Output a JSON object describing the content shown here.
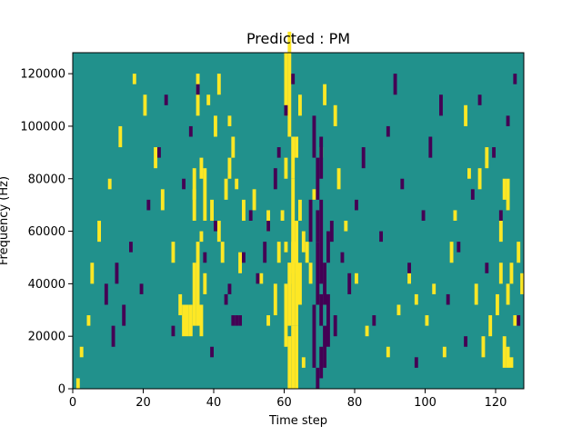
{
  "chart_data": {
    "type": "heatmap",
    "title": "Predicted : PM",
    "xlabel": "Time step",
    "ylabel": "Frequency (Hz)",
    "xlim": [
      0,
      128
    ],
    "ylim": [
      0,
      128000
    ],
    "xticks": [
      0,
      20,
      40,
      60,
      80,
      100,
      120
    ],
    "xtick_labels": [
      "0",
      "20",
      "40",
      "60",
      "80",
      "100",
      "120"
    ],
    "yticks": [
      0,
      20000,
      40000,
      60000,
      80000,
      100000,
      120000
    ],
    "ytick_labels": [
      "0",
      "20000",
      "40000",
      "60000",
      "80000",
      "100000",
      "120000"
    ],
    "grid": false,
    "legend": "none",
    "colors": {
      "background": "#21918c",
      "high": "#fde725",
      "low": "#440154"
    },
    "bin_height_hz": 4000,
    "high_cells": [
      [
        61,
        0,
        5
      ],
      [
        62,
        0,
        6
      ],
      [
        63,
        0,
        6
      ],
      [
        60,
        4,
        10
      ],
      [
        61,
        6,
        12
      ],
      [
        62,
        6,
        20
      ],
      [
        63,
        6,
        16
      ],
      [
        62,
        20,
        24
      ],
      [
        60,
        26,
        32
      ],
      [
        61,
        24,
        34
      ],
      [
        64,
        8,
        12
      ],
      [
        34,
        6,
        12
      ],
      [
        35,
        6,
        14
      ],
      [
        36,
        5,
        8
      ],
      [
        33,
        5,
        8
      ],
      [
        32,
        5,
        8
      ],
      [
        31,
        5,
        8
      ],
      [
        37,
        9,
        11
      ],
      [
        37,
        16,
        21
      ],
      [
        34,
        16,
        21
      ],
      [
        36,
        20,
        22
      ],
      [
        35,
        26,
        30
      ],
      [
        38,
        27,
        28
      ],
      [
        41,
        28,
        30
      ],
      [
        43,
        18,
        20
      ],
      [
        47,
        11,
        13
      ],
      [
        61,
        10,
        12
      ],
      [
        62,
        11,
        14
      ],
      [
        63,
        12,
        14
      ],
      [
        65,
        2,
        3
      ],
      [
        60,
        13,
        14
      ],
      [
        59,
        16,
        17
      ],
      [
        57,
        7,
        10
      ],
      [
        58,
        12,
        14
      ],
      [
        51,
        17,
        19
      ],
      [
        53,
        10,
        11
      ],
      [
        55,
        6,
        7
      ],
      [
        44,
        20,
        22
      ],
      [
        45,
        22,
        24
      ],
      [
        46,
        19,
        20
      ],
      [
        40,
        24,
        26
      ],
      [
        39,
        16,
        18
      ],
      [
        42,
        12,
        14
      ],
      [
        41,
        14,
        16
      ],
      [
        44,
        25,
        26
      ],
      [
        48,
        16,
        18
      ],
      [
        36,
        14,
        15
      ],
      [
        34,
        18,
        19
      ],
      [
        55,
        15,
        17
      ],
      [
        64,
        16,
        18
      ],
      [
        66,
        12,
        14
      ],
      [
        64,
        26,
        28
      ],
      [
        63,
        22,
        24
      ],
      [
        60,
        20,
        22
      ],
      [
        65,
        13,
        15
      ],
      [
        122,
        2,
        5
      ],
      [
        123,
        2,
        4
      ],
      [
        124,
        10,
        12
      ],
      [
        121,
        10,
        12
      ],
      [
        122,
        18,
        20
      ],
      [
        123,
        17,
        20
      ],
      [
        121,
        14,
        16
      ],
      [
        123,
        8,
        10
      ],
      [
        125,
        6,
        7
      ],
      [
        124,
        2,
        3
      ],
      [
        120,
        7,
        9
      ],
      [
        116,
        3,
        5
      ],
      [
        118,
        5,
        7
      ],
      [
        114,
        8,
        10
      ],
      [
        126,
        12,
        14
      ],
      [
        127,
        9,
        11
      ],
      [
        115,
        19,
        21
      ],
      [
        117,
        21,
        23
      ],
      [
        111,
        25,
        27
      ],
      [
        112,
        20,
        21
      ],
      [
        108,
        16,
        17
      ],
      [
        95,
        10,
        11
      ],
      [
        97,
        8,
        9
      ],
      [
        100,
        6,
        7
      ],
      [
        102,
        9,
        10
      ],
      [
        105,
        3,
        4
      ],
      [
        107,
        12,
        14
      ],
      [
        89,
        3,
        4
      ],
      [
        92,
        7,
        8
      ],
      [
        83,
        5,
        6
      ],
      [
        80,
        10,
        11
      ],
      [
        77,
        15,
        16
      ],
      [
        75,
        19,
        21
      ],
      [
        74,
        25,
        27
      ],
      [
        71,
        27,
        29
      ],
      [
        70,
        22,
        23
      ],
      [
        68,
        18,
        19
      ],
      [
        67,
        10,
        12
      ],
      [
        30,
        7,
        9
      ],
      [
        28,
        12,
        14
      ],
      [
        25,
        17,
        19
      ],
      [
        23,
        21,
        23
      ],
      [
        20,
        26,
        28
      ],
      [
        17,
        29,
        30
      ],
      [
        13,
        23,
        25
      ],
      [
        10,
        19,
        20
      ],
      [
        7,
        14,
        16
      ],
      [
        5,
        10,
        12
      ],
      [
        4,
        6,
        7
      ],
      [
        2,
        3,
        4
      ],
      [
        1,
        0,
        1
      ]
    ],
    "low_cells": [
      [
        69,
        0,
        2
      ],
      [
        70,
        1,
        4
      ],
      [
        71,
        2,
        6
      ],
      [
        72,
        4,
        9
      ],
      [
        68,
        2,
        8
      ],
      [
        69,
        8,
        14
      ],
      [
        70,
        10,
        18
      ],
      [
        71,
        8,
        12
      ],
      [
        72,
        12,
        15
      ],
      [
        73,
        14,
        16
      ],
      [
        69,
        18,
        22
      ],
      [
        70,
        20,
        24
      ],
      [
        68,
        22,
        26
      ],
      [
        67,
        14,
        18
      ],
      [
        69,
        14,
        17
      ],
      [
        70,
        6,
        9
      ],
      [
        45,
        6,
        7
      ],
      [
        46,
        6,
        7
      ],
      [
        47,
        6,
        7
      ],
      [
        44,
        9,
        10
      ],
      [
        40,
        15,
        16
      ],
      [
        43,
        8,
        9
      ],
      [
        48,
        12,
        13
      ],
      [
        50,
        16,
        17
      ],
      [
        52,
        10,
        11
      ],
      [
        54,
        12,
        14
      ],
      [
        55,
        15,
        16
      ],
      [
        57,
        19,
        21
      ],
      [
        58,
        22,
        23
      ],
      [
        60,
        26,
        27
      ],
      [
        62,
        29,
        30
      ],
      [
        74,
        5,
        7
      ],
      [
        76,
        12,
        13
      ],
      [
        78,
        9,
        11
      ],
      [
        80,
        17,
        18
      ],
      [
        82,
        21,
        23
      ],
      [
        85,
        6,
        7
      ],
      [
        87,
        14,
        15
      ],
      [
        89,
        24,
        25
      ],
      [
        91,
        28,
        30
      ],
      [
        93,
        19,
        20
      ],
      [
        95,
        11,
        12
      ],
      [
        97,
        2,
        3
      ],
      [
        99,
        16,
        17
      ],
      [
        101,
        22,
        24
      ],
      [
        104,
        26,
        28
      ],
      [
        106,
        8,
        9
      ],
      [
        109,
        13,
        14
      ],
      [
        111,
        4,
        5
      ],
      [
        113,
        18,
        19
      ],
      [
        115,
        27,
        28
      ],
      [
        117,
        11,
        12
      ],
      [
        119,
        22,
        23
      ],
      [
        121,
        16,
        17
      ],
      [
        123,
        25,
        26
      ],
      [
        125,
        29,
        30
      ],
      [
        126,
        6,
        7
      ],
      [
        9,
        8,
        10
      ],
      [
        11,
        4,
        6
      ],
      [
        12,
        10,
        12
      ],
      [
        14,
        6,
        8
      ],
      [
        16,
        13,
        14
      ],
      [
        19,
        9,
        10
      ],
      [
        21,
        17,
        18
      ],
      [
        24,
        22,
        23
      ],
      [
        26,
        27,
        28
      ],
      [
        28,
        5,
        6
      ],
      [
        31,
        19,
        20
      ],
      [
        33,
        24,
        25
      ],
      [
        35,
        28,
        29
      ],
      [
        37,
        12,
        13
      ],
      [
        39,
        3,
        4
      ]
    ]
  }
}
